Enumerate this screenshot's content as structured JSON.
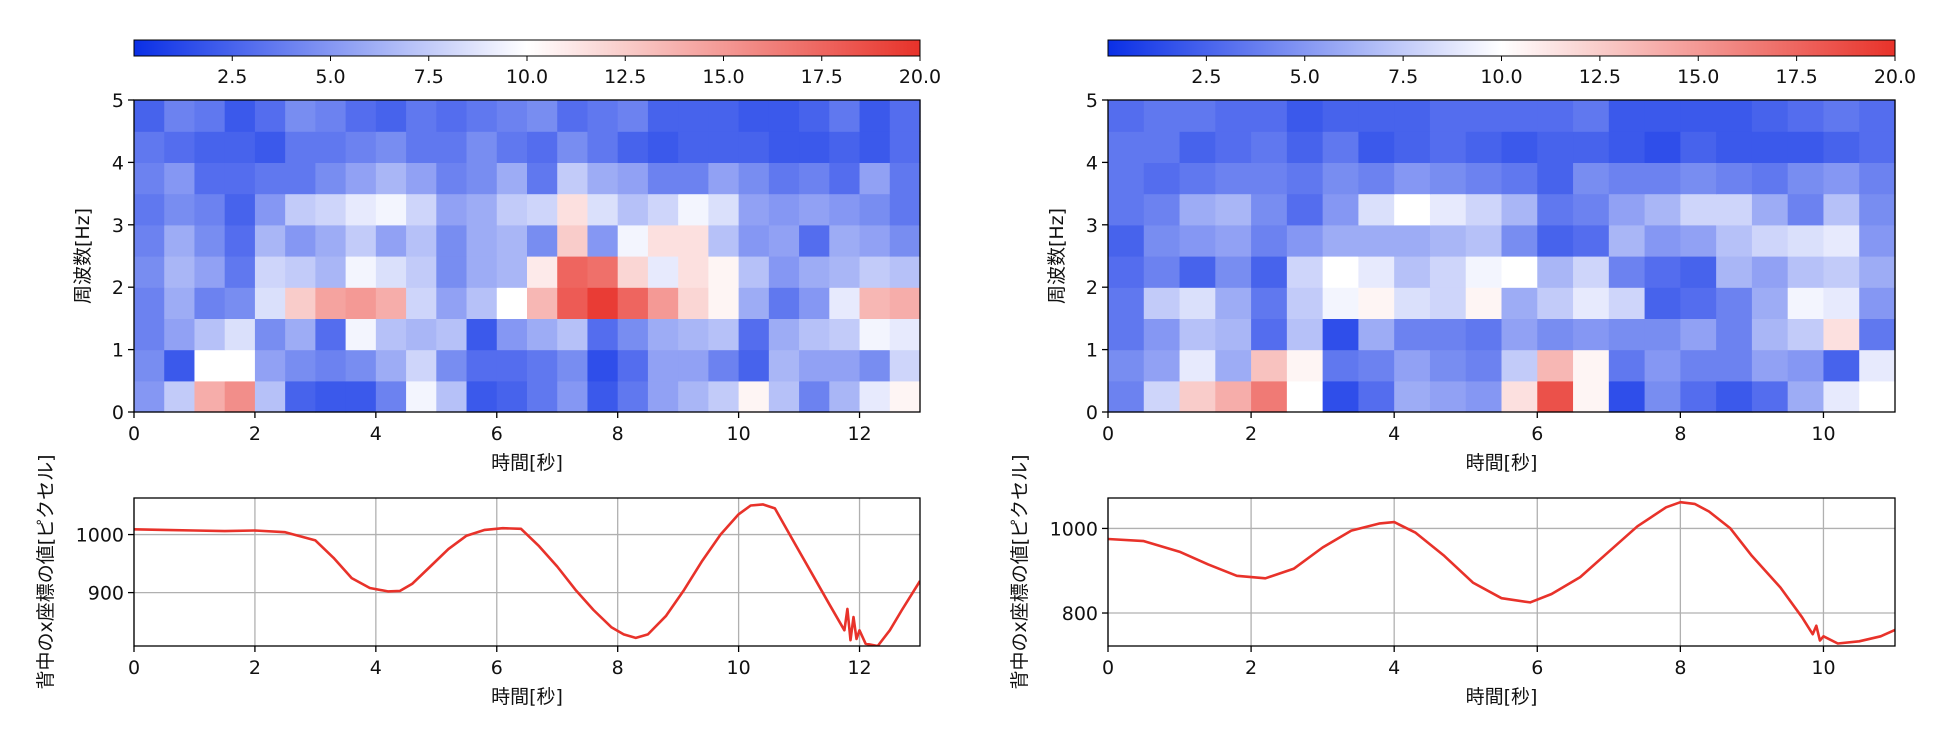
{
  "chart_data": [
    {
      "type": "heatmap",
      "panel": "left-top",
      "xlabel": "時間[秒]",
      "ylabel": "周波数[Hz]",
      "xlim": [
        0,
        13
      ],
      "ylim": [
        0,
        5
      ],
      "xticks": [
        "0",
        "2",
        "4",
        "6",
        "8",
        "10",
        "12"
      ],
      "yticks": [
        "0",
        "1",
        "2",
        "3",
        "4",
        "5"
      ],
      "colorbar": {
        "min": 0,
        "max": 20,
        "ticks": [
          "2.5",
          "5.0",
          "7.5",
          "10.0",
          "12.5",
          "15.0",
          "17.5",
          "20.0"
        ],
        "colors": [
          "#0a2fe6",
          "#ffffff",
          "#e8322a"
        ]
      },
      "values": [
        [
          5.0,
          7.5,
          14.0,
          15.5,
          7.0,
          2.5,
          2.0,
          2.0,
          4.0,
          9.5,
          7.0,
          2.0,
          2.5,
          3.5,
          5.0,
          2.0,
          3.5,
          5.5,
          6.5,
          7.5,
          10.5,
          7.0,
          4.0,
          6.5,
          9.0,
          10.5
        ],
        [
          4.5,
          2.0,
          10.0,
          10.0,
          5.5,
          4.5,
          4.0,
          4.5,
          6.0,
          8.0,
          4.5,
          3.0,
          3.0,
          3.5,
          4.5,
          1.5,
          3.0,
          5.5,
          5.5,
          4.0,
          2.5,
          6.5,
          5.5,
          5.5,
          4.5,
          8.0
        ],
        [
          4.0,
          5.5,
          7.0,
          8.5,
          4.5,
          6.0,
          3.0,
          9.5,
          7.0,
          6.5,
          7.0,
          2.0,
          5.0,
          6.0,
          7.0,
          3.0,
          4.5,
          6.0,
          6.5,
          7.0,
          3.0,
          6.0,
          7.0,
          7.5,
          9.5,
          9.0
        ],
        [
          4.0,
          6.0,
          4.0,
          4.5,
          8.5,
          12.5,
          14.5,
          15.0,
          14.0,
          8.0,
          5.5,
          7.0,
          10.0,
          13.5,
          18.0,
          19.5,
          17.5,
          15.0,
          12.0,
          10.5,
          6.0,
          3.5,
          5.0,
          9.0,
          13.5,
          14.0
        ],
        [
          4.5,
          6.5,
          5.5,
          3.5,
          8.0,
          7.5,
          6.5,
          9.5,
          8.5,
          7.5,
          4.5,
          6.0,
          6.5,
          11.0,
          17.5,
          17.0,
          12.0,
          9.0,
          11.5,
          10.5,
          7.0,
          5.0,
          6.0,
          6.5,
          7.5,
          7.0
        ],
        [
          4.0,
          6.0,
          4.5,
          3.0,
          6.5,
          5.0,
          6.0,
          7.5,
          5.5,
          7.0,
          4.5,
          6.0,
          6.5,
          4.5,
          12.5,
          5.0,
          9.5,
          11.5,
          11.5,
          7.0,
          5.0,
          5.5,
          3.0,
          6.0,
          5.5,
          4.5
        ],
        [
          3.5,
          4.5,
          4.0,
          2.5,
          5.0,
          7.5,
          8.0,
          9.0,
          9.5,
          8.0,
          5.5,
          6.0,
          7.5,
          8.0,
          11.5,
          8.5,
          7.0,
          8.0,
          9.5,
          8.5,
          5.5,
          5.0,
          5.5,
          5.0,
          4.5,
          3.5
        ],
        [
          4.0,
          5.0,
          3.0,
          3.0,
          3.5,
          3.5,
          4.5,
          5.5,
          6.5,
          5.5,
          4.0,
          4.5,
          6.0,
          3.5,
          7.5,
          6.0,
          5.5,
          4.0,
          4.0,
          5.5,
          4.5,
          3.5,
          4.0,
          3.0,
          5.5,
          3.5
        ],
        [
          3.5,
          3.0,
          2.5,
          2.5,
          2.0,
          3.5,
          3.5,
          4.0,
          4.5,
          3.5,
          3.5,
          4.5,
          3.5,
          3.0,
          4.5,
          3.5,
          2.5,
          2.0,
          2.5,
          2.5,
          2.5,
          2.0,
          2.0,
          2.5,
          2.0,
          3.0
        ],
        [
          2.5,
          4.0,
          3.5,
          2.0,
          3.0,
          4.5,
          4.0,
          3.0,
          2.5,
          3.5,
          3.0,
          3.5,
          4.0,
          4.5,
          3.0,
          3.5,
          4.0,
          2.5,
          2.5,
          2.5,
          2.0,
          2.0,
          2.5,
          3.5,
          2.0,
          3.0
        ]
      ]
    },
    {
      "type": "line",
      "panel": "left-bottom",
      "xlabel": "時間[秒]",
      "ylabel": "背中のx座標の値[ピクセル]",
      "xlim": [
        0,
        13
      ],
      "ylim": [
        808,
        1063
      ],
      "xticks": [
        "0",
        "2",
        "4",
        "6",
        "8",
        "10",
        "12"
      ],
      "yticks": [
        "900",
        "1000"
      ],
      "grid": true,
      "color": "#e8322a",
      "series": [
        {
          "x": [
            0,
            0.5,
            1.0,
            1.5,
            2.0,
            2.5,
            3.0,
            3.3,
            3.6,
            3.9,
            4.2,
            4.4,
            4.6,
            4.9,
            5.2,
            5.5,
            5.8,
            6.1,
            6.4,
            6.7,
            7.0,
            7.3,
            7.6,
            7.9,
            8.1,
            8.3,
            8.5,
            8.8,
            9.1,
            9.4,
            9.7,
            10.0,
            10.2,
            10.4,
            10.6,
            10.9,
            11.2,
            11.5,
            11.75,
            11.8,
            11.85,
            11.9,
            11.95,
            12.0,
            12.1,
            12.3,
            12.5,
            12.7,
            13.0
          ],
          "y": [
            1009,
            1008,
            1007,
            1006,
            1007,
            1004,
            990,
            960,
            925,
            908,
            902,
            903,
            915,
            945,
            975,
            998,
            1008,
            1011,
            1010,
            980,
            945,
            905,
            870,
            840,
            828,
            822,
            828,
            860,
            905,
            955,
            1000,
            1035,
            1050,
            1052,
            1045,
            990,
            935,
            880,
            835,
            872,
            818,
            858,
            820,
            835,
            812,
            808,
            835,
            870,
            920
          ]
        }
      ]
    },
    {
      "type": "heatmap",
      "panel": "right-top",
      "xlabel": "時間[秒]",
      "ylabel": "周波数[Hz]",
      "xlim": [
        0,
        11
      ],
      "ylim": [
        0,
        5
      ],
      "xticks": [
        "0",
        "2",
        "4",
        "6",
        "8",
        "10"
      ],
      "yticks": [
        "0",
        "1",
        "2",
        "3",
        "4",
        "5"
      ],
      "colorbar": {
        "min": 0,
        "max": 20,
        "ticks": [
          "2.5",
          "5.0",
          "7.5",
          "10.0",
          "12.5",
          "15.0",
          "17.5",
          "20.0"
        ],
        "colors": [
          "#0a2fe6",
          "#ffffff",
          "#e8322a"
        ]
      },
      "values": [
        [
          4.0,
          8.0,
          12.5,
          14.0,
          16.5,
          10.0,
          1.5,
          3.0,
          6.0,
          5.5,
          5.0,
          11.5,
          18.5,
          10.5,
          1.5,
          4.5,
          3.0,
          2.0,
          3.0,
          6.0,
          9.0,
          10.0
        ],
        [
          4.5,
          5.5,
          9.0,
          6.0,
          13.0,
          10.5,
          3.5,
          4.0,
          5.5,
          4.5,
          4.0,
          7.5,
          13.5,
          10.5,
          3.5,
          5.0,
          4.0,
          4.0,
          5.5,
          5.0,
          2.5,
          9.0
        ],
        [
          3.5,
          5.0,
          7.0,
          6.5,
          3.0,
          7.0,
          1.5,
          6.0,
          4.0,
          4.0,
          3.5,
          5.5,
          4.5,
          5.0,
          4.5,
          4.5,
          5.5,
          4.0,
          6.5,
          7.5,
          11.5,
          3.5
        ],
        [
          3.5,
          7.5,
          8.5,
          6.0,
          3.5,
          7.5,
          9.5,
          10.5,
          8.5,
          8.0,
          10.5,
          6.0,
          7.5,
          9.0,
          8.0,
          2.5,
          3.0,
          4.0,
          6.0,
          9.5,
          9.0,
          5.0
        ],
        [
          3.0,
          4.0,
          2.5,
          4.5,
          2.5,
          8.0,
          10.0,
          9.0,
          7.0,
          8.0,
          9.5,
          10.0,
          6.5,
          8.0,
          4.0,
          3.0,
          2.5,
          6.5,
          5.5,
          7.0,
          7.5,
          6.0
        ],
        [
          2.5,
          4.5,
          5.0,
          5.5,
          4.0,
          5.0,
          6.0,
          6.0,
          6.0,
          6.5,
          7.0,
          4.5,
          2.5,
          3.0,
          6.5,
          5.0,
          5.5,
          7.0,
          8.0,
          8.5,
          9.0,
          5.0
        ],
        [
          3.5,
          4.0,
          6.0,
          6.5,
          4.5,
          3.0,
          5.0,
          8.5,
          10.0,
          9.0,
          8.0,
          6.5,
          3.5,
          4.0,
          5.5,
          6.5,
          8.0,
          8.0,
          6.0,
          4.0,
          7.0,
          4.5
        ],
        [
          3.5,
          3.0,
          3.5,
          4.0,
          4.0,
          3.5,
          4.5,
          4.0,
          5.0,
          4.5,
          4.0,
          3.5,
          2.5,
          4.5,
          4.0,
          4.0,
          4.5,
          4.0,
          3.5,
          4.5,
          5.0,
          4.0
        ],
        [
          3.5,
          3.5,
          2.5,
          3.0,
          3.5,
          2.5,
          3.5,
          2.0,
          2.5,
          3.0,
          2.5,
          2.0,
          2.5,
          2.5,
          2.0,
          1.5,
          2.5,
          2.0,
          2.0,
          2.0,
          2.5,
          3.0
        ],
        [
          3.0,
          3.5,
          3.5,
          3.0,
          3.0,
          2.0,
          2.5,
          2.5,
          2.5,
          3.0,
          3.0,
          3.0,
          3.0,
          3.5,
          2.0,
          2.0,
          2.0,
          2.0,
          2.5,
          3.0,
          3.5,
          3.0
        ]
      ]
    },
    {
      "type": "line",
      "panel": "right-bottom",
      "xlabel": "時間[秒]",
      "ylabel": "背中のx座標の値[ピクセル]",
      "xlim": [
        0,
        11
      ],
      "ylim": [
        722,
        1072
      ],
      "xticks": [
        "0",
        "2",
        "4",
        "6",
        "8",
        "10"
      ],
      "yticks": [
        "800",
        "1000"
      ],
      "grid": true,
      "color": "#e8322a",
      "series": [
        {
          "x": [
            0,
            0.5,
            1.0,
            1.4,
            1.8,
            2.2,
            2.6,
            3.0,
            3.4,
            3.8,
            4.0,
            4.3,
            4.7,
            5.1,
            5.5,
            5.9,
            6.2,
            6.6,
            7.0,
            7.4,
            7.8,
            8.0,
            8.2,
            8.4,
            8.7,
            9.0,
            9.4,
            9.7,
            9.85,
            9.9,
            9.95,
            10.0,
            10.2,
            10.5,
            10.8,
            11.0
          ],
          "y": [
            975,
            970,
            945,
            915,
            888,
            882,
            905,
            955,
            995,
            1012,
            1015,
            990,
            935,
            872,
            835,
            825,
            845,
            885,
            945,
            1005,
            1050,
            1062,
            1058,
            1040,
            1000,
            935,
            860,
            790,
            750,
            770,
            735,
            745,
            728,
            733,
            745,
            760
          ]
        }
      ]
    }
  ]
}
